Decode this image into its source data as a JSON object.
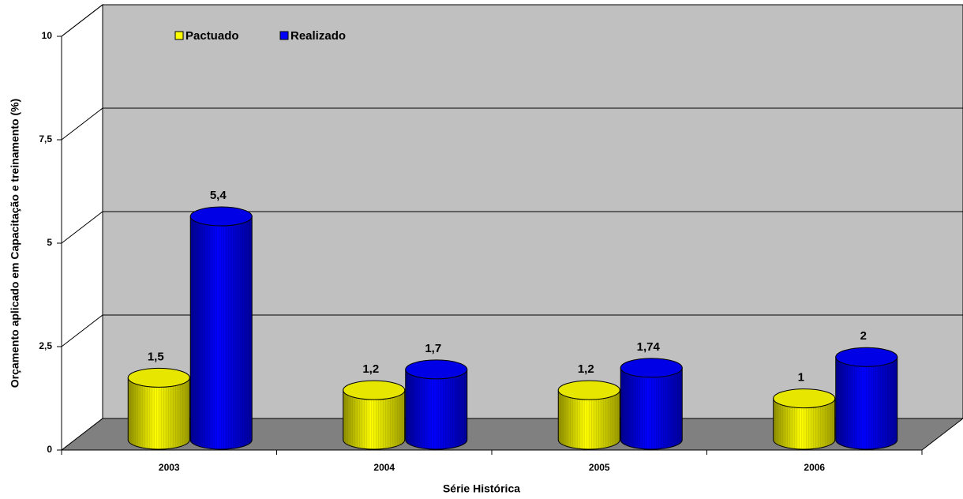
{
  "chart_data": {
    "type": "bar3d",
    "xlabel": "Série Histórica",
    "ylabel": "Orçamento aplicado em Capacitação e treinamento (%)",
    "categories": [
      "2003",
      "2004",
      "2005",
      "2006"
    ],
    "series": [
      {
        "name": "Pactuado",
        "color": "#ffff00",
        "values": [
          1.5,
          1.2,
          1.2,
          1
        ],
        "value_labels": [
          "1,5",
          "1,2",
          "1,2",
          "1"
        ]
      },
      {
        "name": "Realizado",
        "color": "#0000ff",
        "values": [
          5.4,
          1.7,
          1.74,
          2
        ],
        "value_labels": [
          "5,4",
          "1,7",
          "1,74",
          "2"
        ]
      }
    ],
    "ylim": [
      0,
      10
    ],
    "yticks": [
      0,
      {
        "value": 2.5,
        "label": "2,5"
      },
      5,
      {
        "value": 7.5,
        "label": "7,5"
      },
      10
    ],
    "grid": true,
    "legend": "top-left"
  }
}
